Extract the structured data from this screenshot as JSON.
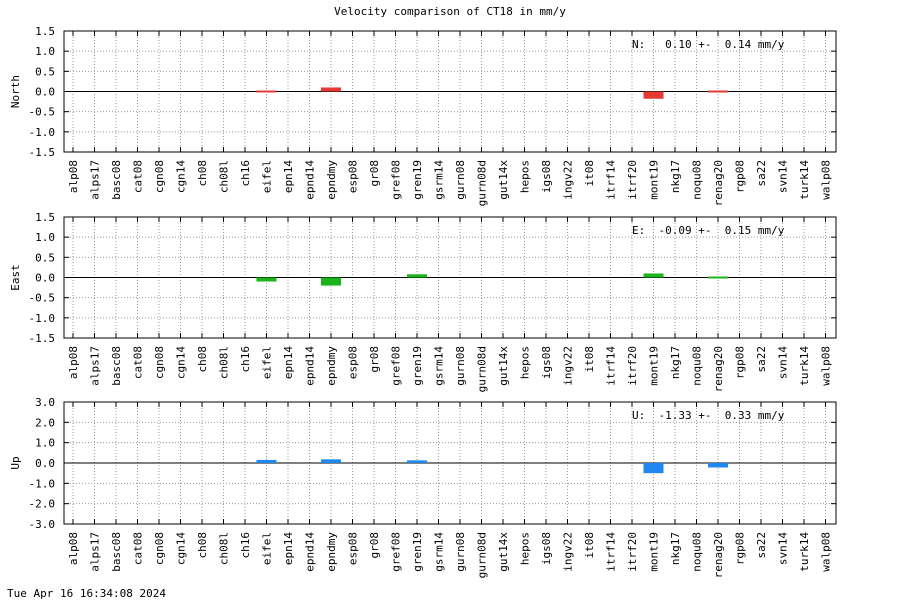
{
  "title": "Velocity comparison of CT18 in mm/y",
  "timestamp": "Tue Apr 16 16:34:08 2024",
  "chart_data": [
    {
      "type": "bar",
      "ylabel": "North",
      "ylim": [
        -1.5,
        1.5
      ],
      "yticks": [
        "1.5",
        "1.0",
        "0.5",
        "0.0",
        "-0.5",
        "-1.0",
        "-1.5"
      ],
      "color": "#e53935",
      "annotation": "N:   0.10 +-  0.14 mm/y",
      "grid": true,
      "categories": [
        "alp08",
        "alps17",
        "basc08",
        "cat08",
        "cgn08",
        "cgn14",
        "ch08",
        "ch08l",
        "ch16",
        "eifel",
        "epn14",
        "epnd14",
        "epndmy",
        "esp08",
        "gr08",
        "gref08",
        "gren19",
        "gsrm14",
        "gurn08",
        "gurn08d",
        "gut14x",
        "hepos",
        "igs08",
        "ingv22",
        "it08",
        "itrf14",
        "itrf20",
        "mont19",
        "nkg17",
        "noqu08",
        "renag20",
        "rgp08",
        "sa22",
        "svn14",
        "turk14",
        "walp08"
      ],
      "values": [
        null,
        null,
        null,
        null,
        null,
        null,
        null,
        null,
        null,
        -0.02,
        null,
        null,
        0.1,
        null,
        null,
        null,
        null,
        null,
        null,
        null,
        null,
        null,
        null,
        null,
        null,
        null,
        null,
        -0.18,
        null,
        null,
        -0.02,
        null,
        null,
        null,
        null,
        null
      ]
    },
    {
      "type": "bar",
      "ylabel": "East",
      "ylim": [
        -1.5,
        1.5
      ],
      "yticks": [
        "1.5",
        "1.0",
        "0.5",
        "0.0",
        "-0.5",
        "-1.0",
        "-1.5"
      ],
      "color": "#1db31d",
      "annotation": "E:  -0.09 +-  0.15 mm/y",
      "grid": true,
      "categories": [
        "alp08",
        "alps17",
        "basc08",
        "cat08",
        "cgn08",
        "cgn14",
        "ch08",
        "ch08l",
        "ch16",
        "eifel",
        "epn14",
        "epnd14",
        "epndmy",
        "esp08",
        "gr08",
        "gref08",
        "gren19",
        "gsrm14",
        "gurn08",
        "gurn08d",
        "gut14x",
        "hepos",
        "igs08",
        "ingv22",
        "it08",
        "itrf14",
        "itrf20",
        "mont19",
        "nkg17",
        "noqu08",
        "renag20",
        "rgp08",
        "sa22",
        "svn14",
        "turk14",
        "walp08"
      ],
      "values": [
        null,
        null,
        null,
        null,
        null,
        null,
        null,
        null,
        null,
        -0.1,
        null,
        null,
        -0.2,
        null,
        null,
        null,
        0.08,
        null,
        null,
        null,
        null,
        null,
        null,
        null,
        null,
        null,
        null,
        0.1,
        null,
        null,
        -0.02,
        null,
        null,
        null,
        null,
        null
      ]
    },
    {
      "type": "bar",
      "ylabel": "Up",
      "ylim": [
        -3.0,
        3.0
      ],
      "yticks": [
        "3.0",
        "2.0",
        "1.0",
        "0.0",
        "-1.0",
        "-2.0",
        "-3.0"
      ],
      "color": "#1e88f0",
      "annotation": "U:  -1.33 +-  0.33 mm/y",
      "grid": true,
      "categories": [
        "alp08",
        "alps17",
        "basc08",
        "cat08",
        "cgn08",
        "cgn14",
        "ch08",
        "ch08l",
        "ch16",
        "eifel",
        "epn14",
        "epnd14",
        "epndmy",
        "esp08",
        "gr08",
        "gref08",
        "gren19",
        "gsrm14",
        "gurn08",
        "gurn08d",
        "gut14x",
        "hepos",
        "igs08",
        "ingv22",
        "it08",
        "itrf14",
        "itrf20",
        "mont19",
        "nkg17",
        "noqu08",
        "renag20",
        "rgp08",
        "sa22",
        "svn14",
        "turk14",
        "walp08"
      ],
      "values": [
        null,
        null,
        null,
        null,
        null,
        null,
        null,
        null,
        null,
        0.15,
        null,
        null,
        0.18,
        null,
        null,
        null,
        0.13,
        null,
        null,
        null,
        null,
        null,
        null,
        null,
        null,
        null,
        null,
        -0.5,
        null,
        null,
        -0.22,
        null,
        null,
        null,
        null,
        null
      ]
    }
  ]
}
